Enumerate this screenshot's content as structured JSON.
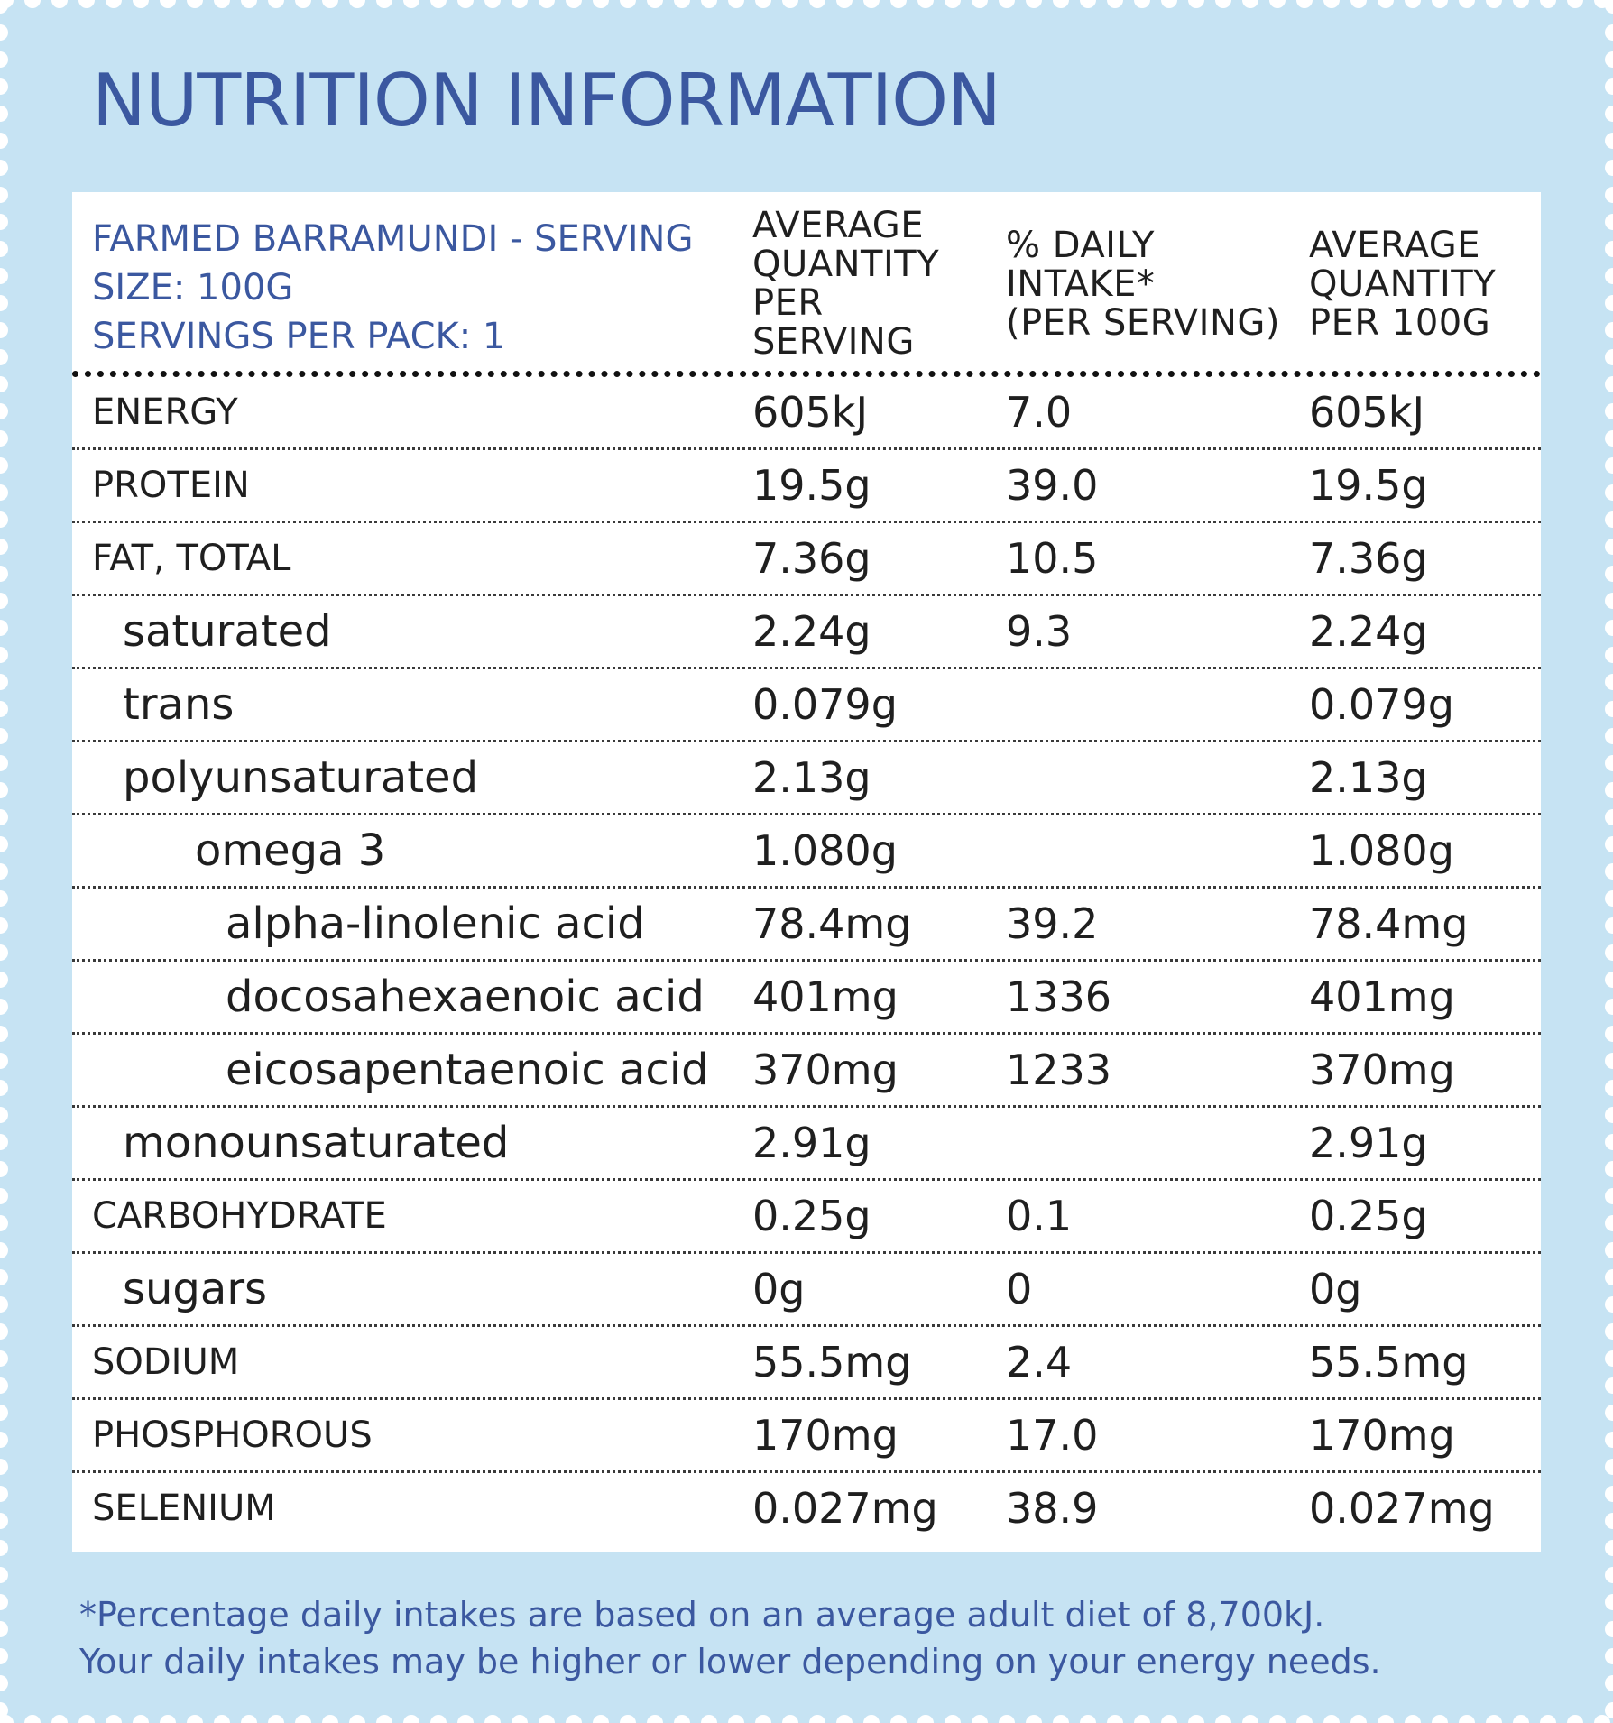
{
  "title": "NUTRITION INFORMATION",
  "header": {
    "product_lines": [
      "FARMED BARRAMUNDI - SERVING",
      "SIZE: 100G",
      "SERVINGS PER PACK: 1"
    ],
    "avg_serving_lines": [
      "AVERAGE",
      "QUANTITY",
      "PER",
      "SERVING"
    ],
    "daily_intake_lines": [
      "% DAILY",
      "INTAKE*",
      "(PER SERVING)"
    ],
    "avg_100g_lines": [
      "AVERAGE",
      "QUANTITY",
      "PER 100G"
    ]
  },
  "rows": [
    {
      "name": "ENERGY",
      "level": 0,
      "per_serving": "605kJ",
      "daily_intake": "7.0",
      "per_100g": "605kJ"
    },
    {
      "name": "PROTEIN",
      "level": 0,
      "per_serving": "19.5g",
      "daily_intake": "39.0",
      "per_100g": "19.5g"
    },
    {
      "name": "FAT, TOTAL",
      "level": 0,
      "per_serving": "7.36g",
      "daily_intake": "10.5",
      "per_100g": "7.36g"
    },
    {
      "name": "saturated",
      "level": 1,
      "per_serving": "2.24g",
      "daily_intake": "9.3",
      "per_100g": "2.24g"
    },
    {
      "name": "trans",
      "level": 1,
      "per_serving": "0.079g",
      "daily_intake": "",
      "per_100g": "0.079g"
    },
    {
      "name": "polyunsaturated",
      "level": 1,
      "per_serving": "2.13g",
      "daily_intake": "",
      "per_100g": "2.13g"
    },
    {
      "name": "omega 3",
      "level": 2,
      "per_serving": "1.080g",
      "daily_intake": "",
      "per_100g": "1.080g"
    },
    {
      "name": "alpha-linolenic acid",
      "level": 3,
      "per_serving": "78.4mg",
      "daily_intake": "39.2",
      "per_100g": "78.4mg"
    },
    {
      "name": "docosahexaenoic acid",
      "level": 3,
      "per_serving": "401mg",
      "daily_intake": "1336",
      "per_100g": "401mg"
    },
    {
      "name": "eicosapentaenoic acid",
      "level": 3,
      "per_serving": "370mg",
      "daily_intake": "1233",
      "per_100g": "370mg"
    },
    {
      "name": "monounsaturated",
      "level": 1,
      "per_serving": "2.91g",
      "daily_intake": "",
      "per_100g": "2.91g"
    },
    {
      "name": "CARBOHYDRATE",
      "level": 0,
      "per_serving": "0.25g",
      "daily_intake": "0.1",
      "per_100g": "0.25g"
    },
    {
      "name": "sugars",
      "level": 1,
      "per_serving": "0g",
      "daily_intake": "0",
      "per_100g": "0g"
    },
    {
      "name": "SODIUM",
      "level": 0,
      "per_serving": "55.5mg",
      "daily_intake": "2.4",
      "per_100g": "55.5mg"
    },
    {
      "name": "PHOSPHOROUS",
      "level": 0,
      "per_serving": "170mg",
      "daily_intake": "17.0",
      "per_100g": "170mg"
    },
    {
      "name": "SELENIUM",
      "level": 0,
      "per_serving": "0.027mg",
      "daily_intake": "38.9",
      "per_100g": "0.027mg"
    }
  ],
  "footnote": [
    "*Percentage daily intakes are based on an average adult diet of 8,700kJ.",
    "Your daily intakes may be higher or lower depending on your energy needs."
  ],
  "colors": {
    "background": "#c6e3f3",
    "heading": "#3b58a0",
    "text": "#1f1f1f",
    "panel": "#ffffff"
  }
}
